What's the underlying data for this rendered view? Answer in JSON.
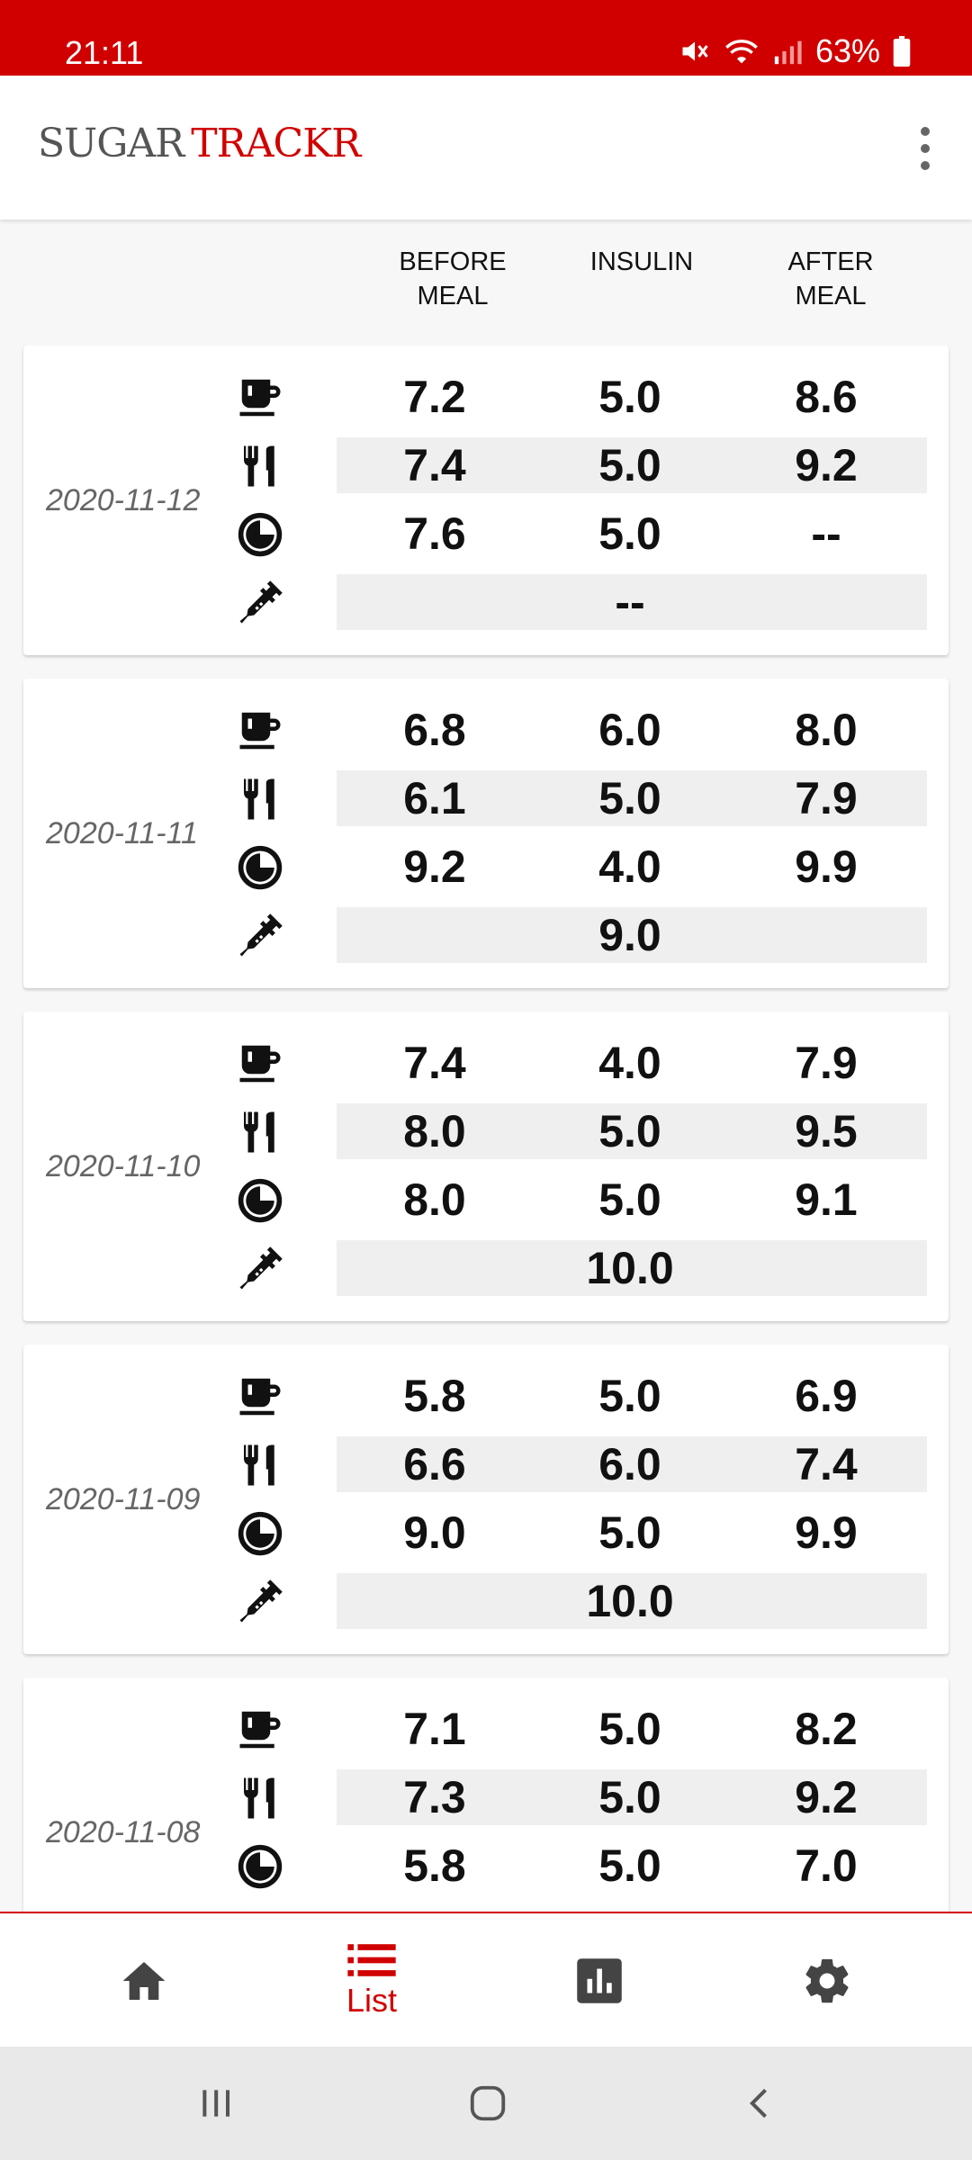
{
  "status_bar": {
    "time": "21:11",
    "battery": "63%"
  },
  "app": {
    "logo_part1": "SUGAR",
    "logo_part2": "TRACKR"
  },
  "columns": {
    "before": "BEFORE\nMEAL",
    "insulin": "INSULIN",
    "after": "AFTER\nMEAL"
  },
  "icons": {
    "meal1": "coffee-cup-icon",
    "meal2": "fork-knife-icon",
    "meal3": "clock-moon-icon",
    "long_insulin": "syringe-icon"
  },
  "entries": [
    {
      "date": "2020-11-12",
      "breakfast": {
        "before": "7.2",
        "insulin": "5.0",
        "after": "8.6"
      },
      "lunch": {
        "before": "7.4",
        "insulin": "5.0",
        "after": "9.2"
      },
      "dinner": {
        "before": "7.6",
        "insulin": "5.0",
        "after": "--"
      },
      "long_insulin": "--"
    },
    {
      "date": "2020-11-11",
      "breakfast": {
        "before": "6.8",
        "insulin": "6.0",
        "after": "8.0"
      },
      "lunch": {
        "before": "6.1",
        "insulin": "5.0",
        "after": "7.9"
      },
      "dinner": {
        "before": "9.2",
        "insulin": "4.0",
        "after": "9.9"
      },
      "long_insulin": "9.0"
    },
    {
      "date": "2020-11-10",
      "breakfast": {
        "before": "7.4",
        "insulin": "4.0",
        "after": "7.9"
      },
      "lunch": {
        "before": "8.0",
        "insulin": "5.0",
        "after": "9.5"
      },
      "dinner": {
        "before": "8.0",
        "insulin": "5.0",
        "after": "9.1"
      },
      "long_insulin": "10.0"
    },
    {
      "date": "2020-11-09",
      "breakfast": {
        "before": "5.8",
        "insulin": "5.0",
        "after": "6.9"
      },
      "lunch": {
        "before": "6.6",
        "insulin": "6.0",
        "after": "7.4"
      },
      "dinner": {
        "before": "9.0",
        "insulin": "5.0",
        "after": "9.9"
      },
      "long_insulin": "10.0"
    },
    {
      "date": "2020-11-08",
      "breakfast": {
        "before": "7.1",
        "insulin": "5.0",
        "after": "8.2"
      },
      "lunch": {
        "before": "7.3",
        "insulin": "5.0",
        "after": "9.2"
      },
      "dinner": {
        "before": "5.8",
        "insulin": "5.0",
        "after": "7.0"
      },
      "long_insulin": ""
    }
  ],
  "bottom_nav": [
    {
      "icon": "home-icon",
      "label": ""
    },
    {
      "icon": "list-icon",
      "label": "List",
      "active": true
    },
    {
      "icon": "chart-icon",
      "label": ""
    },
    {
      "icon": "gear-icon",
      "label": ""
    }
  ],
  "colors": {
    "accent": "#d10000",
    "shade": "#efefef"
  }
}
